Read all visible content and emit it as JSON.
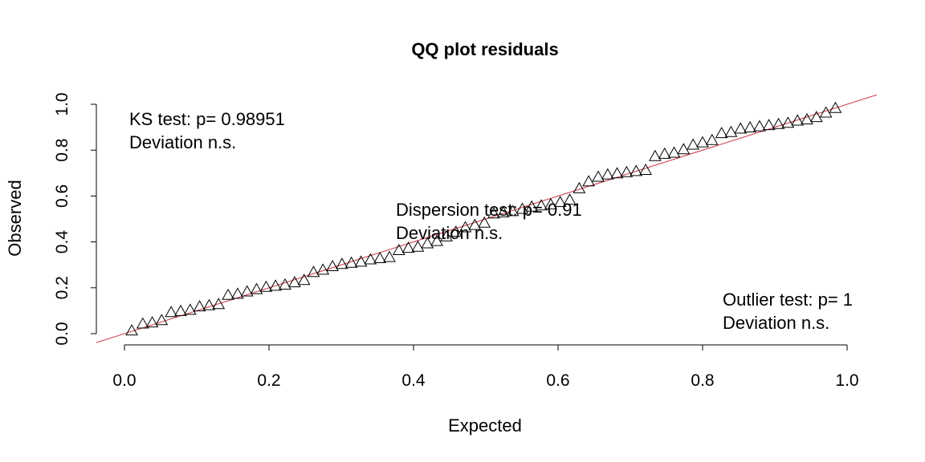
{
  "chart_data": {
    "type": "scatter",
    "title": "QQ plot residuals",
    "xlabel": "Expected",
    "ylabel": "Observed",
    "xlim": [
      0,
      1
    ],
    "ylim": [
      0,
      1
    ],
    "x_ticks": [
      "0.0",
      "0.2",
      "0.4",
      "0.6",
      "0.8",
      "1.0"
    ],
    "y_ticks": [
      "0.0",
      "0.2",
      "0.4",
      "0.6",
      "0.8",
      "1.0"
    ],
    "grid": false,
    "marker": "triangle",
    "reference_line": {
      "slope": 1,
      "intercept": 0,
      "color": "#cc3344"
    },
    "annotations": [
      {
        "line1": "KS test: p= 0.98951",
        "line2": "Deviation  n.s."
      },
      {
        "line1": "Dispersion test: p= 0.91",
        "line2": "Deviation  n.s."
      },
      {
        "line1": "Outlier test: p= 1",
        "line2": "Deviation  n.s."
      }
    ],
    "x": [
      0.0101,
      0.0253,
      0.0384,
      0.0515,
      0.0646,
      0.0778,
      0.0909,
      0.104,
      0.1172,
      0.1303,
      0.1434,
      0.1566,
      0.1697,
      0.1828,
      0.196,
      0.2091,
      0.2222,
      0.2354,
      0.2485,
      0.2616,
      0.2747,
      0.2879,
      0.301,
      0.3141,
      0.3273,
      0.3404,
      0.3535,
      0.3667,
      0.3798,
      0.3929,
      0.4061,
      0.4192,
      0.4323,
      0.4455,
      0.4586,
      0.4717,
      0.4848,
      0.498,
      0.5111,
      0.5242,
      0.5374,
      0.5505,
      0.5636,
      0.5768,
      0.5899,
      0.603,
      0.6162,
      0.6293,
      0.6424,
      0.6556,
      0.6687,
      0.6818,
      0.6949,
      0.7081,
      0.7212,
      0.7343,
      0.7475,
      0.7606,
      0.7737,
      0.7869,
      0.8,
      0.8131,
      0.8263,
      0.8394,
      0.8525,
      0.8657,
      0.8788,
      0.8919,
      0.9051,
      0.9182,
      0.9313,
      0.9444,
      0.9576,
      0.9707,
      0.9838
    ],
    "y": [
      0.01,
      0.04,
      0.045,
      0.055,
      0.09,
      0.095,
      0.1,
      0.115,
      0.12,
      0.125,
      0.165,
      0.17,
      0.18,
      0.19,
      0.2,
      0.205,
      0.21,
      0.22,
      0.23,
      0.265,
      0.275,
      0.29,
      0.3,
      0.305,
      0.31,
      0.32,
      0.325,
      0.33,
      0.36,
      0.37,
      0.375,
      0.39,
      0.4,
      0.42,
      0.44,
      0.46,
      0.47,
      0.48,
      0.52,
      0.525,
      0.53,
      0.54,
      0.55,
      0.555,
      0.56,
      0.57,
      0.58,
      0.63,
      0.66,
      0.68,
      0.69,
      0.695,
      0.7,
      0.705,
      0.71,
      0.77,
      0.78,
      0.785,
      0.8,
      0.82,
      0.83,
      0.84,
      0.87,
      0.875,
      0.89,
      0.895,
      0.9,
      0.905,
      0.91,
      0.915,
      0.925,
      0.93,
      0.94,
      0.96,
      0.98
    ]
  }
}
